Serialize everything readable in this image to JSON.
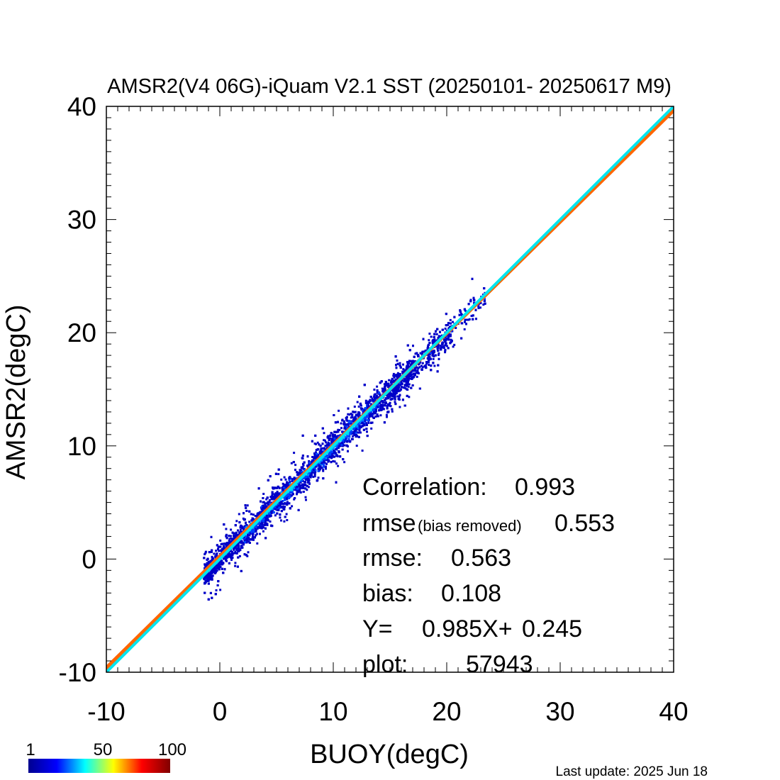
{
  "chart_data": {
    "type": "scatter",
    "subtype": "density",
    "title": "AMSR2(V4 06G)-iQuam V2.1 SST (20250101- 20250617 M9)",
    "xlabel": "BUOY(degC)",
    "ylabel": "AMSR2(degC)",
    "xlim": [
      -10,
      40
    ],
    "ylim": [
      -10,
      40
    ],
    "x_ticks": [
      "-10",
      "0",
      "10",
      "20",
      "30",
      "40"
    ],
    "y_ticks": [
      "-10",
      "0",
      "10",
      "20",
      "30",
      "40"
    ],
    "grid": false,
    "density_cloud": {
      "x_range": [
        -1.5,
        23.5
      ],
      "core_spread_y": 0.5,
      "outer_spread_y": 1.1,
      "peak_density_band_x": [
        2,
        14
      ]
    },
    "series": [
      {
        "name": "regression",
        "color": "#ff6600",
        "slope": 0.985,
        "intercept": 0.245
      },
      {
        "name": "1:1",
        "color": "#00e5ee",
        "slope": 1.0,
        "intercept": 0.0
      }
    ],
    "stats": {
      "correlation_label": "Correlation:",
      "correlation": "0.993",
      "rmse_br_label": "rmse",
      "rmse_br_sub": "(bias removed)",
      "rmse_br": "0.553",
      "rmse_label": "rmse:",
      "rmse": "0.563",
      "bias_label": "bias:",
      "bias": "0.108",
      "fit_y_label": "Y=",
      "fit_slope": "0.985X+",
      "fit_intercept": "0.245",
      "plot_label": "plot:",
      "plot_count": "57943"
    },
    "colorbar": {
      "labels": [
        "1",
        "50",
        "100"
      ],
      "colors": [
        "#00008f",
        "#0000ff",
        "#00ffff",
        "#ffff00",
        "#ff0000",
        "#800000"
      ]
    }
  },
  "footer": {
    "last_update": "Last update: 2025 Jun 18"
  }
}
